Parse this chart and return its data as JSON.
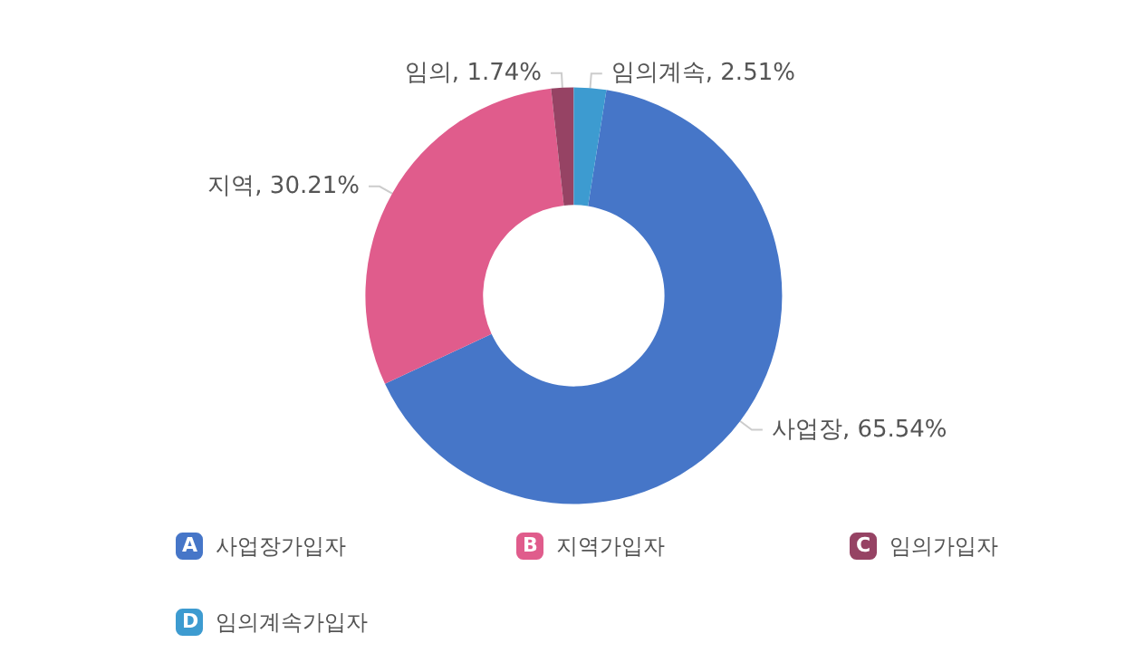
{
  "chart_data": {
    "type": "donut",
    "categories": [
      "사업장가입자",
      "지역가입자",
      "임의가입자",
      "임의계속가입자"
    ],
    "values": [
      65.54,
      30.21,
      1.74,
      2.51
    ],
    "colors": [
      "#4676c8",
      "#e05c8c",
      "#964364",
      "#3d9bd0"
    ],
    "value_labels": [
      "사업장, 65.54%",
      "지역, 30.21%",
      "임의, 1.74%",
      "임의계속, 2.51%"
    ],
    "annotations": [
      "A",
      "B",
      "C",
      "D"
    ],
    "legend": "bottom"
  }
}
